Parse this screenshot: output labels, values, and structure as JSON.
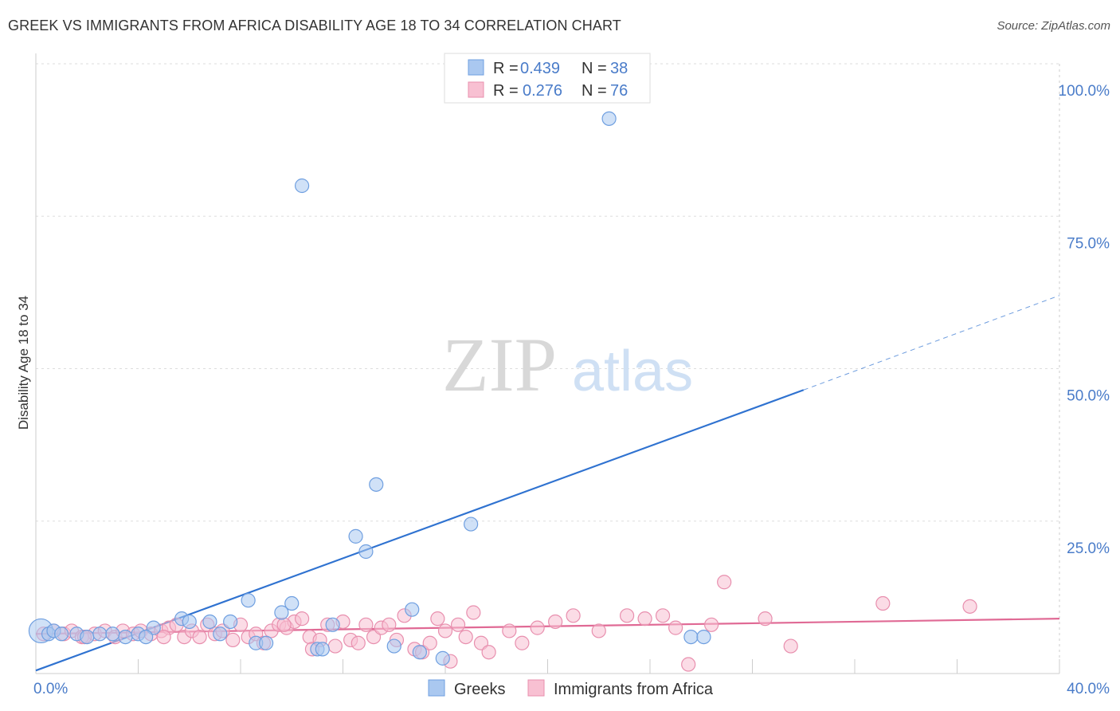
{
  "title": "GREEK VS IMMIGRANTS FROM AFRICA DISABILITY AGE 18 TO 34 CORRELATION CHART",
  "source": "Source: ZipAtlas.com",
  "watermark": {
    "zip": "ZIP",
    "atlas": "atlas"
  },
  "colors": {
    "greeks_fill": "#aac8f0",
    "greeks_stroke": "#6f9fe0",
    "greeks_line": "#2f72d0",
    "africa_fill": "#f8c0d2",
    "africa_stroke": "#e88fae",
    "africa_line": "#e06a95",
    "grid": "#dddddd",
    "tick_text": "#4a7cc9"
  },
  "legend": {
    "rows": [
      {
        "r_label": "R =",
        "r_value": "0.439",
        "n_label": "N =",
        "n_value": "38"
      },
      {
        "r_label": "R =",
        "r_value": "0.276",
        "n_label": "N =",
        "n_value": "76"
      }
    ]
  },
  "bottom_legend": [
    "Greeks",
    "Immigrants from Africa"
  ],
  "chart_data": {
    "type": "scatter",
    "title": "GREEK VS IMMIGRANTS FROM AFRICA DISABILITY AGE 18 TO 34 CORRELATION CHART",
    "xlabel": "",
    "ylabel": "Disability Age 18 to 34",
    "xlim": [
      0,
      40
    ],
    "ylim": [
      0,
      100
    ],
    "x_tick_labels": [
      "0.0%",
      "40.0%"
    ],
    "y_ticks": [
      25,
      50,
      75,
      100
    ],
    "y_tick_labels": [
      "25.0%",
      "50.0%",
      "75.0%",
      "100.0%"
    ],
    "grid": true,
    "legend_position": "top-center",
    "series": [
      {
        "name": "Greeks",
        "R": 0.439,
        "N": 38,
        "trend": {
          "x0": 0,
          "y0": 0.5,
          "x1": 30,
          "y1": 46.5,
          "dash_to_x": 40,
          "dash_to_y": 62
        },
        "points": [
          [
            0.2,
            7.0,
            2
          ],
          [
            0.5,
            6.5,
            1
          ],
          [
            0.7,
            7.0,
            1
          ],
          [
            1.0,
            6.5,
            1
          ],
          [
            1.6,
            6.5,
            1
          ],
          [
            2.0,
            6.0,
            1
          ],
          [
            2.5,
            6.5,
            1
          ],
          [
            3.0,
            6.5,
            1
          ],
          [
            3.5,
            6.0,
            1
          ],
          [
            4.0,
            6.5,
            1
          ],
          [
            4.6,
            7.5,
            1
          ],
          [
            5.7,
            9.0,
            1
          ],
          [
            6.0,
            8.5,
            1
          ],
          [
            6.8,
            8.5,
            1
          ],
          [
            7.2,
            6.5,
            1
          ],
          [
            7.6,
            8.5,
            1
          ],
          [
            8.3,
            12.0,
            1
          ],
          [
            8.6,
            5.0,
            1
          ],
          [
            9.6,
            10.0,
            1
          ],
          [
            10.0,
            11.5,
            1
          ],
          [
            10.4,
            80.0,
            1
          ],
          [
            11.0,
            4.0,
            1
          ],
          [
            11.2,
            4.0,
            1
          ],
          [
            11.6,
            8.0,
            1
          ],
          [
            12.5,
            22.5,
            1
          ],
          [
            12.9,
            20.0,
            1
          ],
          [
            13.3,
            31.0,
            1
          ],
          [
            14.0,
            4.5,
            1
          ],
          [
            14.7,
            10.5,
            1
          ],
          [
            15.0,
            3.5,
            1
          ],
          [
            15.9,
            2.5,
            1
          ],
          [
            17.0,
            24.5,
            1
          ],
          [
            22.4,
            91.0,
            1
          ],
          [
            22.4,
            100.0,
            1
          ],
          [
            25.6,
            6.0,
            1
          ],
          [
            26.1,
            6.0,
            1
          ],
          [
            9.0,
            5.0,
            1
          ],
          [
            4.3,
            6.0,
            1
          ]
        ]
      },
      {
        "name": "Immigrants from Africa",
        "R": 0.276,
        "N": 76,
        "trend": {
          "x0": 0,
          "y0": 6.5,
          "x1": 40,
          "y1": 9.0
        },
        "points": [
          [
            0.3,
            6.5,
            1
          ],
          [
            0.7,
            7.0,
            1
          ],
          [
            1.1,
            6.5,
            1
          ],
          [
            1.4,
            7.0,
            1
          ],
          [
            1.8,
            6.0,
            1
          ],
          [
            2.3,
            6.5,
            1
          ],
          [
            2.7,
            7.0,
            1
          ],
          [
            3.1,
            6.0,
            1
          ],
          [
            3.4,
            7.0,
            1
          ],
          [
            3.8,
            6.5,
            1
          ],
          [
            4.1,
            7.0,
            1
          ],
          [
            4.5,
            6.5,
            1
          ],
          [
            4.9,
            7.0,
            1
          ],
          [
            5.2,
            7.5,
            1
          ],
          [
            5.5,
            8.0,
            1
          ],
          [
            5.8,
            6.0,
            1
          ],
          [
            6.1,
            7.0,
            1
          ],
          [
            6.4,
            6.0,
            1
          ],
          [
            6.7,
            8.0,
            1
          ],
          [
            7.0,
            6.5,
            1
          ],
          [
            7.3,
            7.0,
            1
          ],
          [
            7.7,
            5.5,
            1
          ],
          [
            8.0,
            8.0,
            1
          ],
          [
            8.3,
            6.0,
            1
          ],
          [
            8.6,
            6.5,
            1
          ],
          [
            8.9,
            5.0,
            1
          ],
          [
            9.2,
            7.0,
            1
          ],
          [
            9.5,
            8.0,
            1
          ],
          [
            9.8,
            7.5,
            1
          ],
          [
            10.1,
            8.5,
            1
          ],
          [
            10.4,
            9.0,
            1
          ],
          [
            10.7,
            6.0,
            1
          ],
          [
            10.8,
            4.0,
            1
          ],
          [
            11.1,
            5.5,
            1
          ],
          [
            11.4,
            8.0,
            1
          ],
          [
            11.7,
            4.5,
            1
          ],
          [
            12.0,
            8.5,
            1
          ],
          [
            12.3,
            5.5,
            1
          ],
          [
            12.6,
            5.0,
            1
          ],
          [
            12.9,
            8.0,
            1
          ],
          [
            13.2,
            6.0,
            1
          ],
          [
            13.5,
            7.5,
            1
          ],
          [
            13.8,
            8.0,
            1
          ],
          [
            14.1,
            5.5,
            1
          ],
          [
            14.4,
            9.5,
            1
          ],
          [
            14.8,
            4.0,
            1
          ],
          [
            15.1,
            3.5,
            1
          ],
          [
            15.4,
            5.0,
            1
          ],
          [
            15.7,
            9.0,
            1
          ],
          [
            16.0,
            7.0,
            1
          ],
          [
            16.2,
            2.0,
            1
          ],
          [
            16.5,
            8.0,
            1
          ],
          [
            16.8,
            6.0,
            1
          ],
          [
            17.1,
            10.0,
            1
          ],
          [
            17.4,
            5.0,
            1
          ],
          [
            17.7,
            3.5,
            1
          ],
          [
            18.5,
            7.0,
            1
          ],
          [
            19.0,
            5.0,
            1
          ],
          [
            19.6,
            7.5,
            1
          ],
          [
            20.3,
            8.5,
            1
          ],
          [
            21.0,
            9.5,
            1
          ],
          [
            22.0,
            7.0,
            1
          ],
          [
            23.1,
            9.5,
            1
          ],
          [
            23.8,
            9.0,
            1
          ],
          [
            24.5,
            9.5,
            1
          ],
          [
            25.0,
            7.5,
            1
          ],
          [
            25.5,
            1.5,
            1
          ],
          [
            26.4,
            8.0,
            1
          ],
          [
            26.9,
            15.0,
            1
          ],
          [
            28.5,
            9.0,
            1
          ],
          [
            29.5,
            4.5,
            1
          ],
          [
            33.1,
            11.5,
            1
          ],
          [
            36.5,
            11.0,
            1
          ],
          [
            1.9,
            6.0,
            1
          ],
          [
            5.0,
            6.0,
            1
          ],
          [
            9.7,
            8.0,
            1
          ]
        ]
      }
    ]
  }
}
